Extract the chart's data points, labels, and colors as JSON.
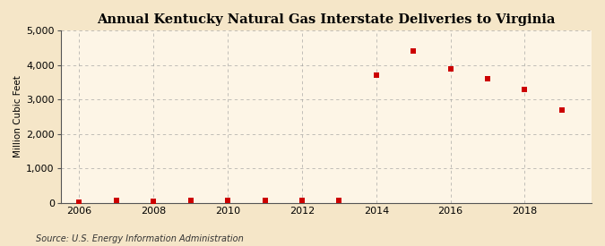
{
  "title": "Annual Kentucky Natural Gas Interstate Deliveries to Virginia",
  "ylabel": "Million Cubic Feet",
  "source": "Source: U.S. Energy Information Administration",
  "background_color": "#f5e6c8",
  "plot_background_color": "#fdf5e6",
  "marker_color": "#cc0000",
  "years": [
    2006,
    2007,
    2008,
    2009,
    2010,
    2011,
    2012,
    2013,
    2014,
    2015,
    2016,
    2017,
    2018,
    2019
  ],
  "values": [
    5,
    70,
    50,
    80,
    80,
    80,
    60,
    80,
    3700,
    4400,
    3900,
    3600,
    3300,
    2700
  ],
  "xlim": [
    2005.5,
    2019.8
  ],
  "ylim": [
    0,
    5000
  ],
  "yticks": [
    0,
    1000,
    2000,
    3000,
    4000,
    5000
  ],
  "ytick_labels": [
    "0",
    "1,000",
    "2,000",
    "3,000",
    "4,000",
    "5,000"
  ],
  "xticks": [
    2006,
    2008,
    2010,
    2012,
    2014,
    2016,
    2018
  ],
  "title_fontsize": 10.5,
  "label_fontsize": 7.5,
  "tick_fontsize": 8,
  "source_fontsize": 7,
  "marker_size": 25
}
